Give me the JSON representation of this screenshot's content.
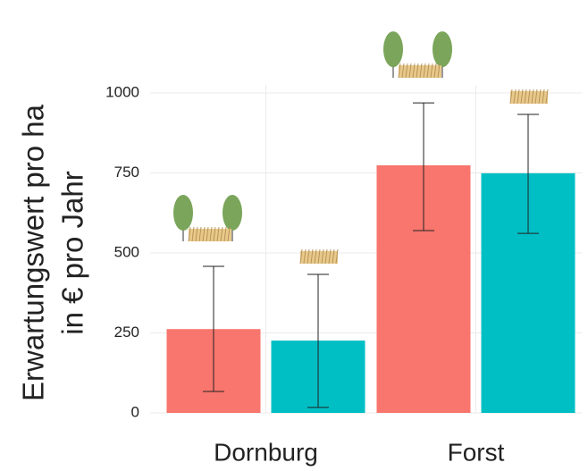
{
  "chart_data": {
    "type": "bar",
    "ylabel": [
      "Erwartungswert pro ha",
      "in € pro Jahr"
    ],
    "categories": [
      "Dornburg",
      "Forst"
    ],
    "series": [
      {
        "color": "#f8766d",
        "values": [
          262,
          774
        ],
        "error_low": [
          67,
          570
        ],
        "error_high": [
          458,
          969
        ]
      },
      {
        "color": "#00bfc4",
        "values": [
          226,
          749
        ],
        "error_low": [
          17,
          561
        ],
        "error_high": [
          433,
          933
        ]
      }
    ],
    "ylim": [
      0,
      1000
    ],
    "yticks": [
      0,
      250,
      500,
      750,
      1000
    ],
    "grid": true
  }
}
